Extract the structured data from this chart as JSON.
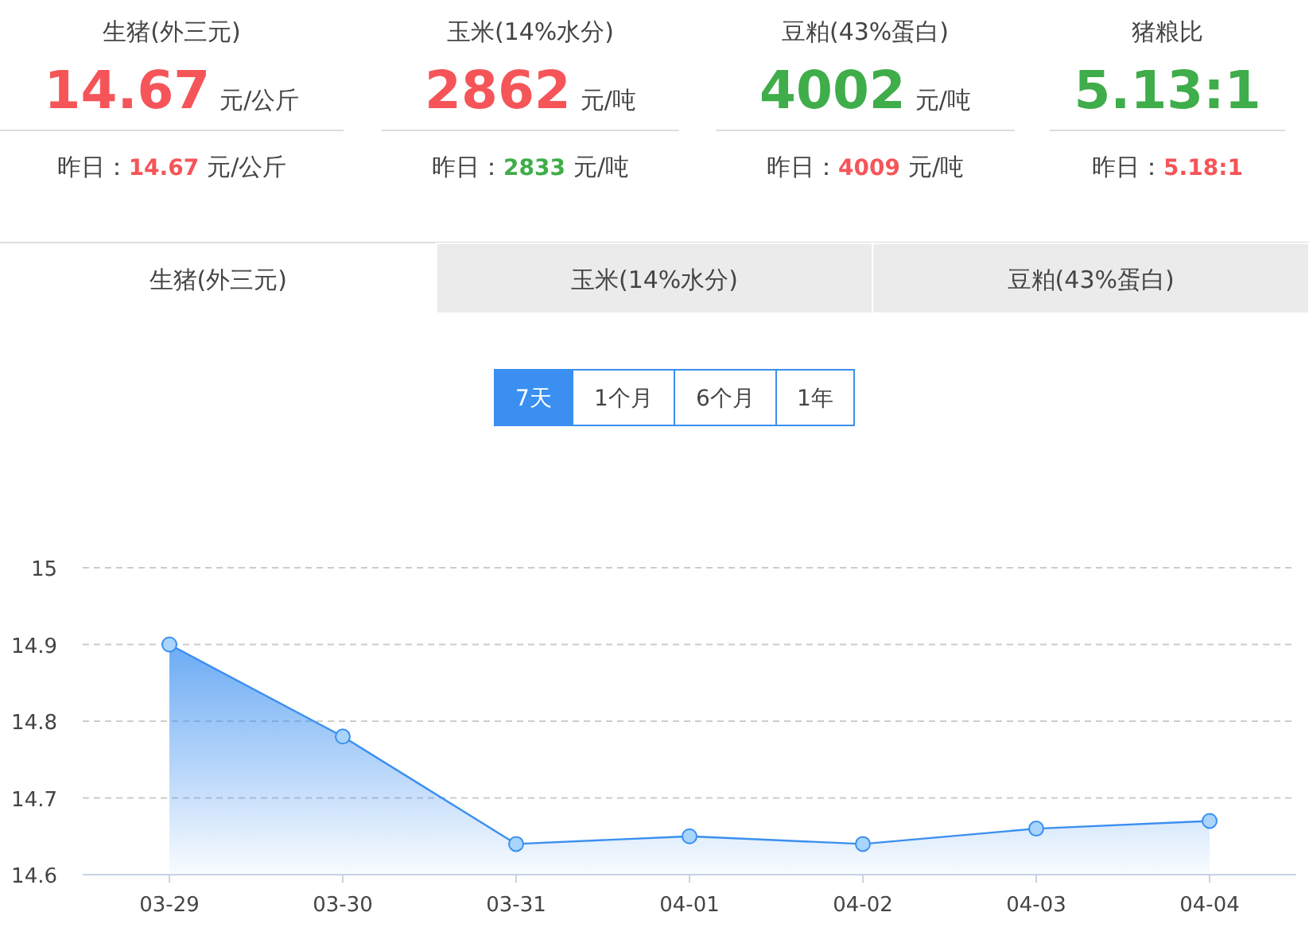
{
  "chart_data": [
    {
      "type": "other",
      "title": "生猪(外三元)",
      "annotations": [
        "14.67",
        "元/公斤",
        "昨日：",
        "14.67",
        "元/公斤"
      ],
      "colors": [
        "#f55558",
        null,
        null,
        "#f55558",
        null
      ]
    },
    {
      "type": "other",
      "title": "玉米(14%水分)",
      "annotations": [
        "2862",
        "元/吨",
        "昨日：",
        "2833",
        "元/吨"
      ],
      "colors": [
        "#f55558",
        null,
        null,
        "#3fad49",
        null
      ]
    },
    {
      "type": "other",
      "title": "豆粕(43%蛋白)",
      "annotations": [
        "4002",
        "元/吨",
        "昨日：",
        "4009",
        "元/吨"
      ],
      "colors": [
        "#3fad49",
        null,
        null,
        "#f55558",
        null
      ]
    },
    {
      "type": "other",
      "title": "猪粮比",
      "annotations": [
        "5.13:1",
        "昨日：",
        "5.18:1"
      ],
      "colors": [
        "#3fad49",
        null,
        "#f55558"
      ]
    },
    {
      "type": "other",
      "categories": [
        "生猪(外三元)",
        "玉米(14%水分)",
        "豆粕(43%蛋白)"
      ],
      "annotations": [
        "7天",
        "1个月",
        "6个月",
        "1年"
      ]
    },
    {
      "type": "area",
      "categories": [
        "03-29",
        "03-30",
        "03-31",
        "04-01",
        "04-02",
        "04-03",
        "04-04"
      ],
      "series": [
        {
          "color": "#3a8ff0",
          "values": [
            14.9,
            14.78,
            14.64,
            14.65,
            14.64,
            14.66,
            14.67
          ]
        }
      ],
      "ylim": [
        14.6,
        15
      ],
      "yticks": [
        14.6,
        14.7,
        14.8,
        14.9,
        15
      ],
      "grid": "y",
      "marker": "circle"
    }
  ]
}
